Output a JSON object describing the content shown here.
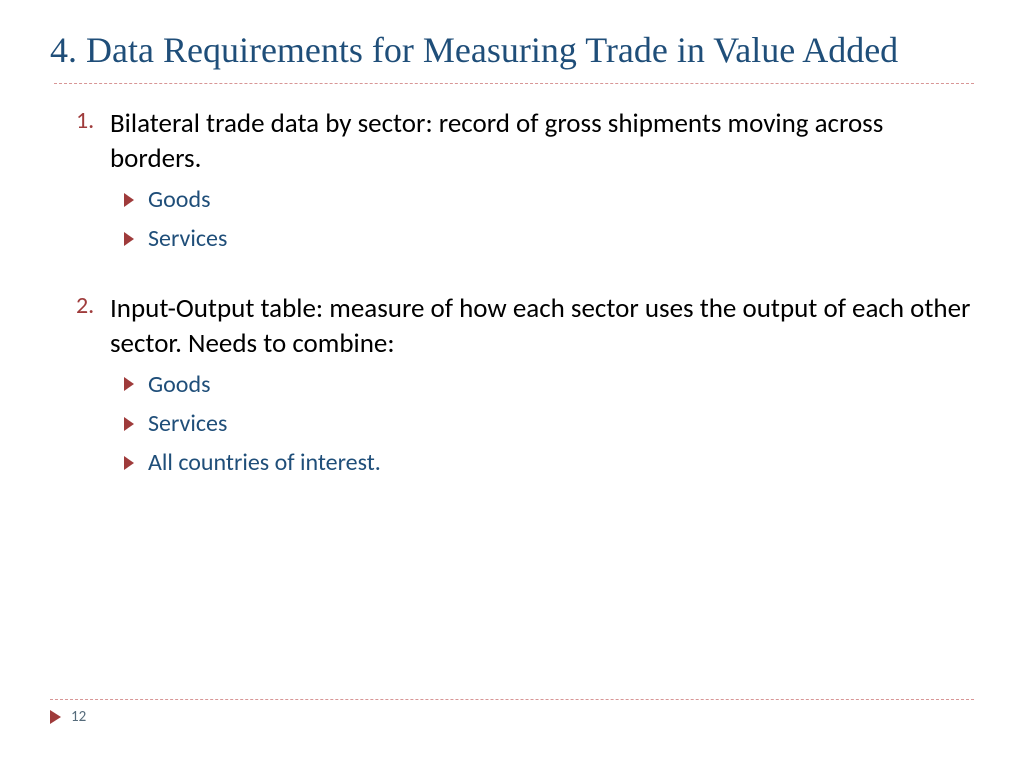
{
  "colors": {
    "title": "#1f4e79",
    "body": "#000000",
    "subtext": "#1f4e79",
    "num_marker": "#9f3b3b",
    "bullet": "#9f3b3b",
    "divider": "#d89696",
    "pagenum": "#556b7b"
  },
  "typography": {
    "title_fontsize": 36,
    "body_fontsize": 27,
    "num_marker_fontsize": 24,
    "sub_fontsize": 24,
    "pagenum_fontsize": 15
  },
  "title": "4. Data Requirements for Measuring Trade in Value Added",
  "items": [
    {
      "marker": "1.",
      "text": "Bilateral trade data by sector: record of gross shipments moving across borders.",
      "subs": [
        "Goods",
        "Services"
      ]
    },
    {
      "marker": "2.",
      "text": "Input-Output table: measure of how each sector uses the output of each other sector. Needs to combine:",
      "subs": [
        "Goods",
        "Services",
        "All countries of interest."
      ]
    }
  ],
  "page_number": "12"
}
